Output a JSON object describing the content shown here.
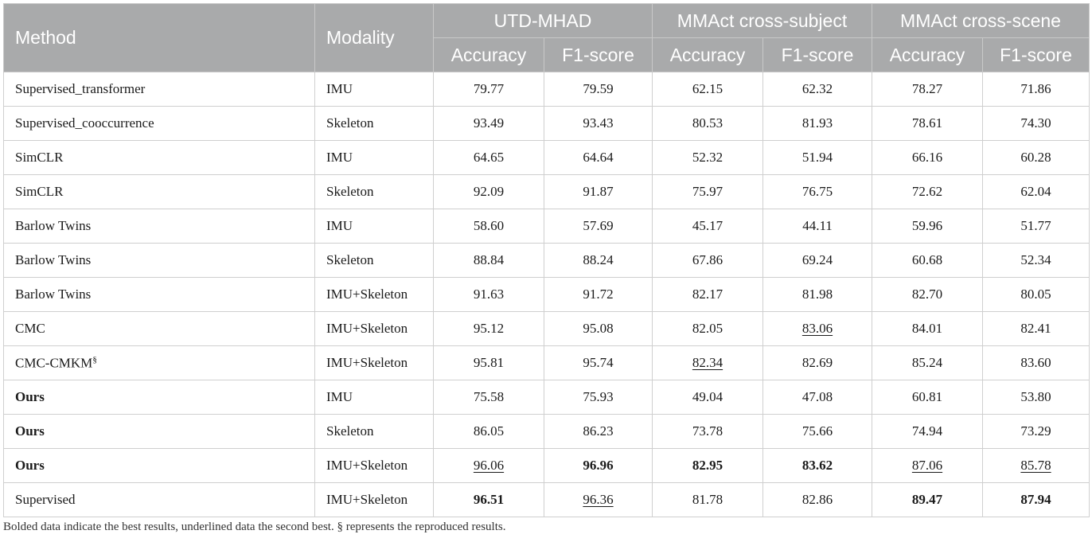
{
  "table": {
    "headers": {
      "method": "Method",
      "modality": "Modality",
      "groups": [
        "UTD-MHAD",
        "MMAct cross-subject",
        "MMAct cross-scene"
      ],
      "sub": [
        "Accuracy",
        "F1-score",
        "Accuracy",
        "F1-score",
        "Accuracy",
        "F1-score"
      ]
    },
    "rows": [
      {
        "method": "Supervised_transformer",
        "modality": "IMU",
        "values": [
          "79.77",
          "79.59",
          "62.15",
          "62.32",
          "78.27",
          "71.86"
        ],
        "bold_method": false,
        "sup": "",
        "bold": [],
        "underline": []
      },
      {
        "method": "Supervised_cooccurrence",
        "modality": "Skeleton",
        "values": [
          "93.49",
          "93.43",
          "80.53",
          "81.93",
          "78.61",
          "74.30"
        ],
        "bold_method": false,
        "sup": "",
        "bold": [],
        "underline": []
      },
      {
        "method": "SimCLR",
        "modality": "IMU",
        "values": [
          "64.65",
          "64.64",
          "52.32",
          "51.94",
          "66.16",
          "60.28"
        ],
        "bold_method": false,
        "sup": "",
        "bold": [],
        "underline": []
      },
      {
        "method": "SimCLR",
        "modality": "Skeleton",
        "values": [
          "92.09",
          "91.87",
          "75.97",
          "76.75",
          "72.62",
          "62.04"
        ],
        "bold_method": false,
        "sup": "",
        "bold": [],
        "underline": []
      },
      {
        "method": "Barlow Twins",
        "modality": "IMU",
        "values": [
          "58.60",
          "57.69",
          "45.17",
          "44.11",
          "59.96",
          "51.77"
        ],
        "bold_method": false,
        "sup": "",
        "bold": [],
        "underline": []
      },
      {
        "method": "Barlow Twins",
        "modality": "Skeleton",
        "values": [
          "88.84",
          "88.24",
          "67.86",
          "69.24",
          "60.68",
          "52.34"
        ],
        "bold_method": false,
        "sup": "",
        "bold": [],
        "underline": []
      },
      {
        "method": "Barlow Twins",
        "modality": "IMU+Skeleton",
        "values": [
          "91.63",
          "91.72",
          "82.17",
          "81.98",
          "82.70",
          "80.05"
        ],
        "bold_method": false,
        "sup": "",
        "bold": [],
        "underline": []
      },
      {
        "method": "CMC",
        "modality": "IMU+Skeleton",
        "values": [
          "95.12",
          "95.08",
          "82.05",
          "83.06",
          "84.01",
          "82.41"
        ],
        "bold_method": false,
        "sup": "",
        "bold": [],
        "underline": [
          3
        ]
      },
      {
        "method": "CMC-CMKM",
        "modality": "IMU+Skeleton",
        "values": [
          "95.81",
          "95.74",
          "82.34",
          "82.69",
          "85.24",
          "83.60"
        ],
        "bold_method": false,
        "sup": "§",
        "bold": [],
        "underline": [
          2
        ]
      },
      {
        "method": "Ours",
        "modality": "IMU",
        "values": [
          "75.58",
          "75.93",
          "49.04",
          "47.08",
          "60.81",
          "53.80"
        ],
        "bold_method": true,
        "sup": "",
        "bold": [],
        "underline": []
      },
      {
        "method": "Ours",
        "modality": "Skeleton",
        "values": [
          "86.05",
          "86.23",
          "73.78",
          "75.66",
          "74.94",
          "73.29"
        ],
        "bold_method": true,
        "sup": "",
        "bold": [],
        "underline": []
      },
      {
        "method": "Ours",
        "modality": "IMU+Skeleton",
        "values": [
          "96.06",
          "96.96",
          "82.95",
          "83.62",
          "87.06",
          "85.78"
        ],
        "bold_method": true,
        "sup": "",
        "bold": [
          1,
          2,
          3
        ],
        "underline": [
          0,
          4,
          5
        ]
      },
      {
        "method": "Supervised",
        "modality": "IMU+Skeleton",
        "values": [
          "96.51",
          "96.36",
          "81.78",
          "82.86",
          "89.47",
          "87.94"
        ],
        "bold_method": false,
        "sup": "",
        "bold": [
          0,
          4,
          5
        ],
        "underline": [
          1
        ]
      }
    ]
  },
  "footnote": "Bolded data indicate the best results, underlined data the second best. § represents the reproduced results."
}
